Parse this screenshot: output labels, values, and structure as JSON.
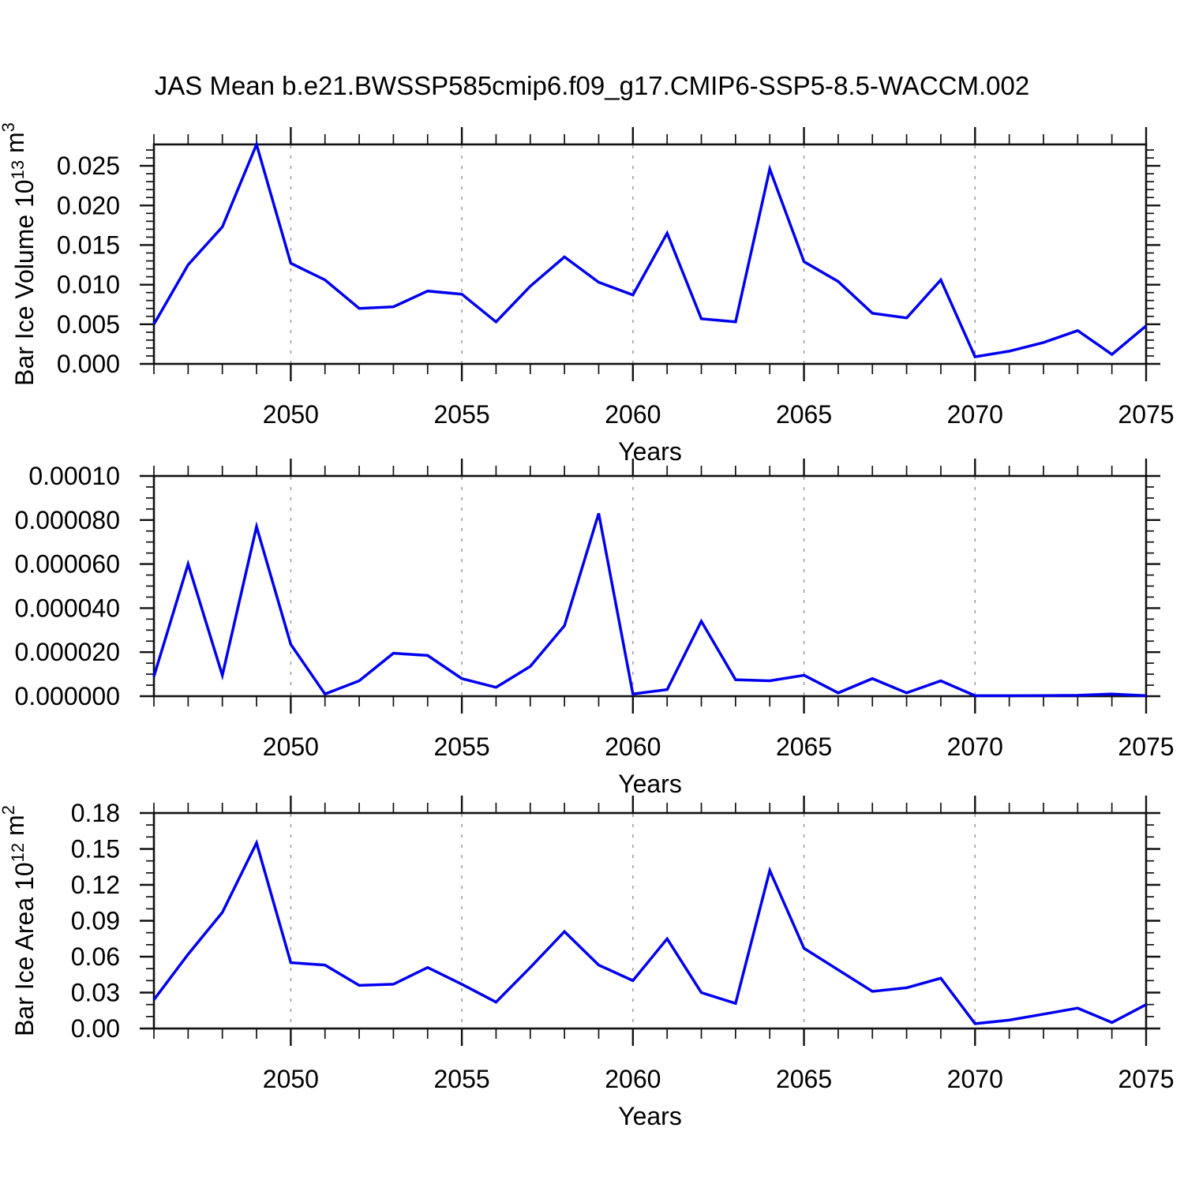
{
  "title": "JAS Mean b.e21.BWSSP585cmip6.f09_g17.CMIP6-SSP5-8.5-WACCM.002",
  "colors": {
    "line": "#0000f0",
    "axis": "#111111",
    "grid": "#999999",
    "background": "#ffffff"
  },
  "x_axis": {
    "label": "Years",
    "start": 2046,
    "end": 2075,
    "major_ticks": [
      2050,
      2055,
      2060,
      2065,
      2070,
      2075
    ],
    "major_tick_labels": [
      "2050",
      "2055",
      "2060",
      "2065",
      "2070",
      "2075"
    ],
    "gridlines": [
      2050,
      2055,
      2060,
      2065,
      2070
    ],
    "minor_step": 1
  },
  "chart_data": [
    {
      "type": "line",
      "panel": "top",
      "ylabel": "Bar Ice Volume 10^13 m^3",
      "ylabel_parts": [
        [
          "Bar Ice Volume 10",
          false
        ],
        [
          "13",
          true
        ],
        [
          " m",
          false
        ],
        [
          "3",
          true
        ]
      ],
      "xlabel": "Years",
      "ylim": [
        0,
        0.0277
      ],
      "ytick_values": [
        0,
        0.005,
        0.01,
        0.015,
        0.02,
        0.025
      ],
      "ytick_labels": [
        "0.000",
        "0.005",
        "0.010",
        "0.015",
        "0.020",
        "0.025"
      ],
      "yminor_step": 0.001,
      "x": [
        2046,
        2047,
        2048,
        2049,
        2050,
        2051,
        2052,
        2053,
        2054,
        2055,
        2056,
        2057,
        2058,
        2059,
        2060,
        2061,
        2062,
        2063,
        2064,
        2065,
        2066,
        2067,
        2068,
        2069,
        2070,
        2071,
        2072,
        2073,
        2074,
        2075
      ],
      "values": [
        0.005,
        0.0125,
        0.0173,
        0.0277,
        0.0127,
        0.0106,
        0.007,
        0.0072,
        0.0092,
        0.0088,
        0.0053,
        0.0098,
        0.0135,
        0.0103,
        0.0087,
        0.0165,
        0.0057,
        0.0053,
        0.0246,
        0.0129,
        0.0104,
        0.0064,
        0.0058,
        0.0106,
        0.0009,
        0.0016,
        0.0027,
        0.0042,
        0.0012,
        0.0048
      ]
    },
    {
      "type": "line",
      "panel": "middle",
      "ylabel": "",
      "ylabel_parts": [],
      "xlabel": "Years",
      "ylim": [
        0,
        0.0001
      ],
      "ytick_values": [
        0,
        2e-05,
        4e-05,
        6e-05,
        8e-05,
        0.0001
      ],
      "ytick_labels": [
        "0.000000",
        "0.000020",
        "0.000040",
        "0.000060",
        "0.000080",
        "0.00010"
      ],
      "yminor_step": 5e-06,
      "x": [
        2046,
        2047,
        2048,
        2049,
        2050,
        2051,
        2052,
        2053,
        2054,
        2055,
        2056,
        2057,
        2058,
        2059,
        2060,
        2061,
        2062,
        2063,
        2064,
        2065,
        2066,
        2067,
        2068,
        2069,
        2070,
        2071,
        2072,
        2073,
        2074,
        2075
      ],
      "values": [
        9e-06,
        6e-05,
        9.5e-06,
        7.7e-05,
        2.35e-05,
        1e-06,
        7e-06,
        1.95e-05,
        1.85e-05,
        8e-06,
        4e-06,
        1.35e-05,
        3.2e-05,
        8.3e-05,
        1e-06,
        3e-06,
        3.4e-05,
        7.5e-06,
        7e-06,
        9.5e-06,
        1.5e-06,
        8e-06,
        1.5e-06,
        7e-06,
        2e-07,
        2e-07,
        3e-07,
        4e-07,
        1e-06,
        2e-07
      ]
    },
    {
      "type": "line",
      "panel": "bottom",
      "ylabel": "Bar Ice Area 10^12 m^2",
      "ylabel_parts": [
        [
          "Bar Ice Area 10",
          false
        ],
        [
          "12",
          true
        ],
        [
          " m",
          false
        ],
        [
          "2",
          true
        ]
      ],
      "xlabel": "Years",
      "ylim": [
        0,
        0.18
      ],
      "ytick_values": [
        0,
        0.03,
        0.06,
        0.09,
        0.12,
        0.15,
        0.18
      ],
      "ytick_labels": [
        "0.00",
        "0.03",
        "0.06",
        "0.09",
        "0.12",
        "0.15",
        "0.18"
      ],
      "yminor_step": 0.01,
      "x": [
        2046,
        2047,
        2048,
        2049,
        2050,
        2051,
        2052,
        2053,
        2054,
        2055,
        2056,
        2057,
        2058,
        2059,
        2060,
        2061,
        2062,
        2063,
        2064,
        2065,
        2066,
        2067,
        2068,
        2069,
        2070,
        2071,
        2072,
        2073,
        2074,
        2075
      ],
      "values": [
        0.024,
        0.062,
        0.097,
        0.155,
        0.055,
        0.053,
        0.036,
        0.037,
        0.051,
        0.037,
        0.022,
        0.051,
        0.081,
        0.053,
        0.04,
        0.075,
        0.03,
        0.021,
        0.132,
        0.067,
        0.049,
        0.031,
        0.034,
        0.042,
        0.004,
        0.007,
        0.012,
        0.017,
        0.005,
        0.02
      ]
    }
  ]
}
